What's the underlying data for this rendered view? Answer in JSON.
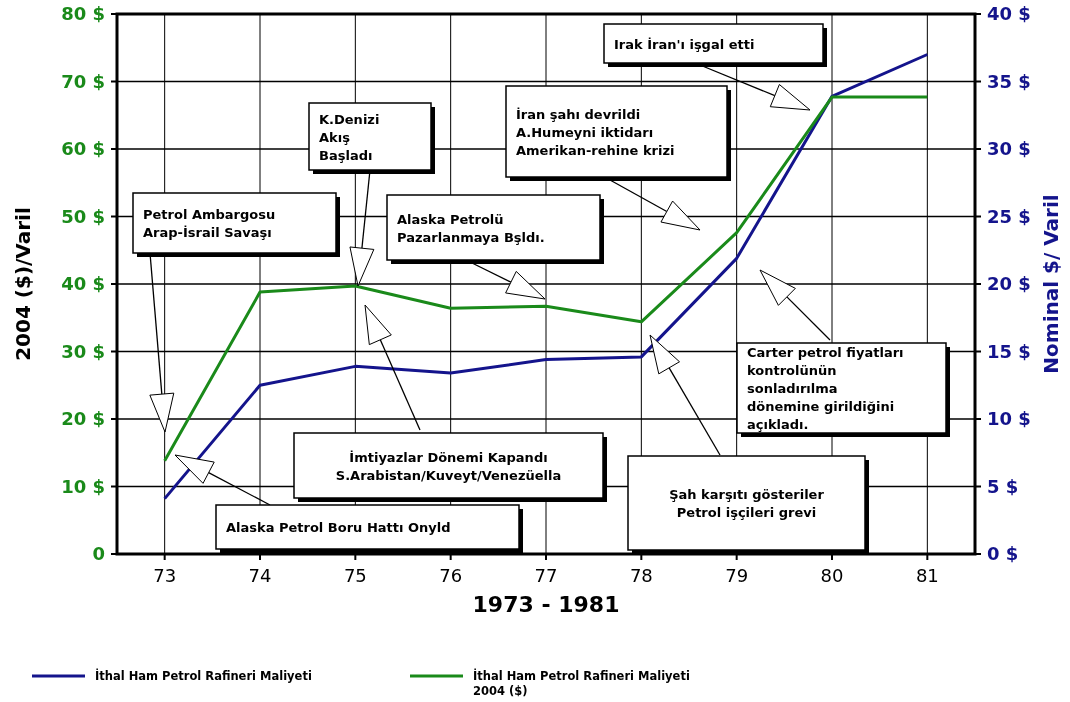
{
  "chart_data": {
    "type": "line",
    "xlabel": "1973 - 1981",
    "ylabel": "2004 ($)/Varil",
    "y2label": "Nominal $/ Varil",
    "x": [
      73,
      74,
      75,
      76,
      77,
      78,
      79,
      80,
      81
    ],
    "xlim": [
      72.5,
      81.5
    ],
    "xticks": [
      73,
      74,
      75,
      76,
      77,
      78,
      79,
      80,
      81
    ],
    "ylim": [
      0,
      80
    ],
    "yticks": [
      {
        "value": 0,
        "label": "0"
      },
      {
        "value": 10,
        "label": "10 $"
      },
      {
        "value": 20,
        "label": "20 $"
      },
      {
        "value": 30,
        "label": "30 $"
      },
      {
        "value": 40,
        "label": "40 $"
      },
      {
        "value": 50,
        "label": "50 $"
      },
      {
        "value": 60,
        "label": "60 $"
      },
      {
        "value": 70,
        "label": "70 $"
      },
      {
        "value": 80,
        "label": "80 $"
      }
    ],
    "y2lim": [
      0,
      40
    ],
    "y2ticks": [
      {
        "value": 0,
        "label": "0 $"
      },
      {
        "value": 5,
        "label": "5  $"
      },
      {
        "value": 10,
        "label": "10 $"
      },
      {
        "value": 15,
        "label": "15 $"
      },
      {
        "value": 20,
        "label": "20 $"
      },
      {
        "value": 25,
        "label": "25 $"
      },
      {
        "value": 30,
        "label": "30 $"
      },
      {
        "value": 35,
        "label": "35 $"
      },
      {
        "value": 40,
        "label": "40 $"
      }
    ],
    "series": [
      {
        "name": "İthal Ham Petrol Rafineri Maliyeti",
        "color": "#14148c",
        "axis": "y2",
        "values": [
          4.1,
          12.5,
          13.9,
          13.4,
          14.4,
          14.6,
          21.9,
          33.9,
          37
        ]
      },
      {
        "name": "İthal Ham Petrol Rafineri Maliyeti 2004 ($)",
        "color": "#1a8a1a",
        "axis": "y",
        "values": [
          13.8,
          38.8,
          39.7,
          36.4,
          36.7,
          34.4,
          47.6,
          67.7,
          67.7
        ]
      }
    ],
    "grid": true,
    "legend": "bottom",
    "line_style": "solid",
    "marker": "none",
    "annotations": [
      "Petrol Ambargosu\nArap-İsrail Savaşı",
      "K.Denizi\nAkış\nBaşladı",
      "Alaska Petrolü\nPazarlanmaya Bşldı.",
      "İran şahı devrildi\nA.Humeyni iktidarı\nAmerikan-rehine krizi",
      "Irak İran'ı işgal etti",
      "Carter petrol fiyatları\nkontrolünün\nsonladırılma\ndönemine girildiğini\naçıkladı.",
      "Şah karşıtı gösteriler\nPetrol işçileri grevi",
      "İmtiyazlar Dönemi Kapandı\nS.Arabistan/Kuveyt/Venezüella",
      "Alaska Petrol Boru Hattı Onyld"
    ]
  }
}
